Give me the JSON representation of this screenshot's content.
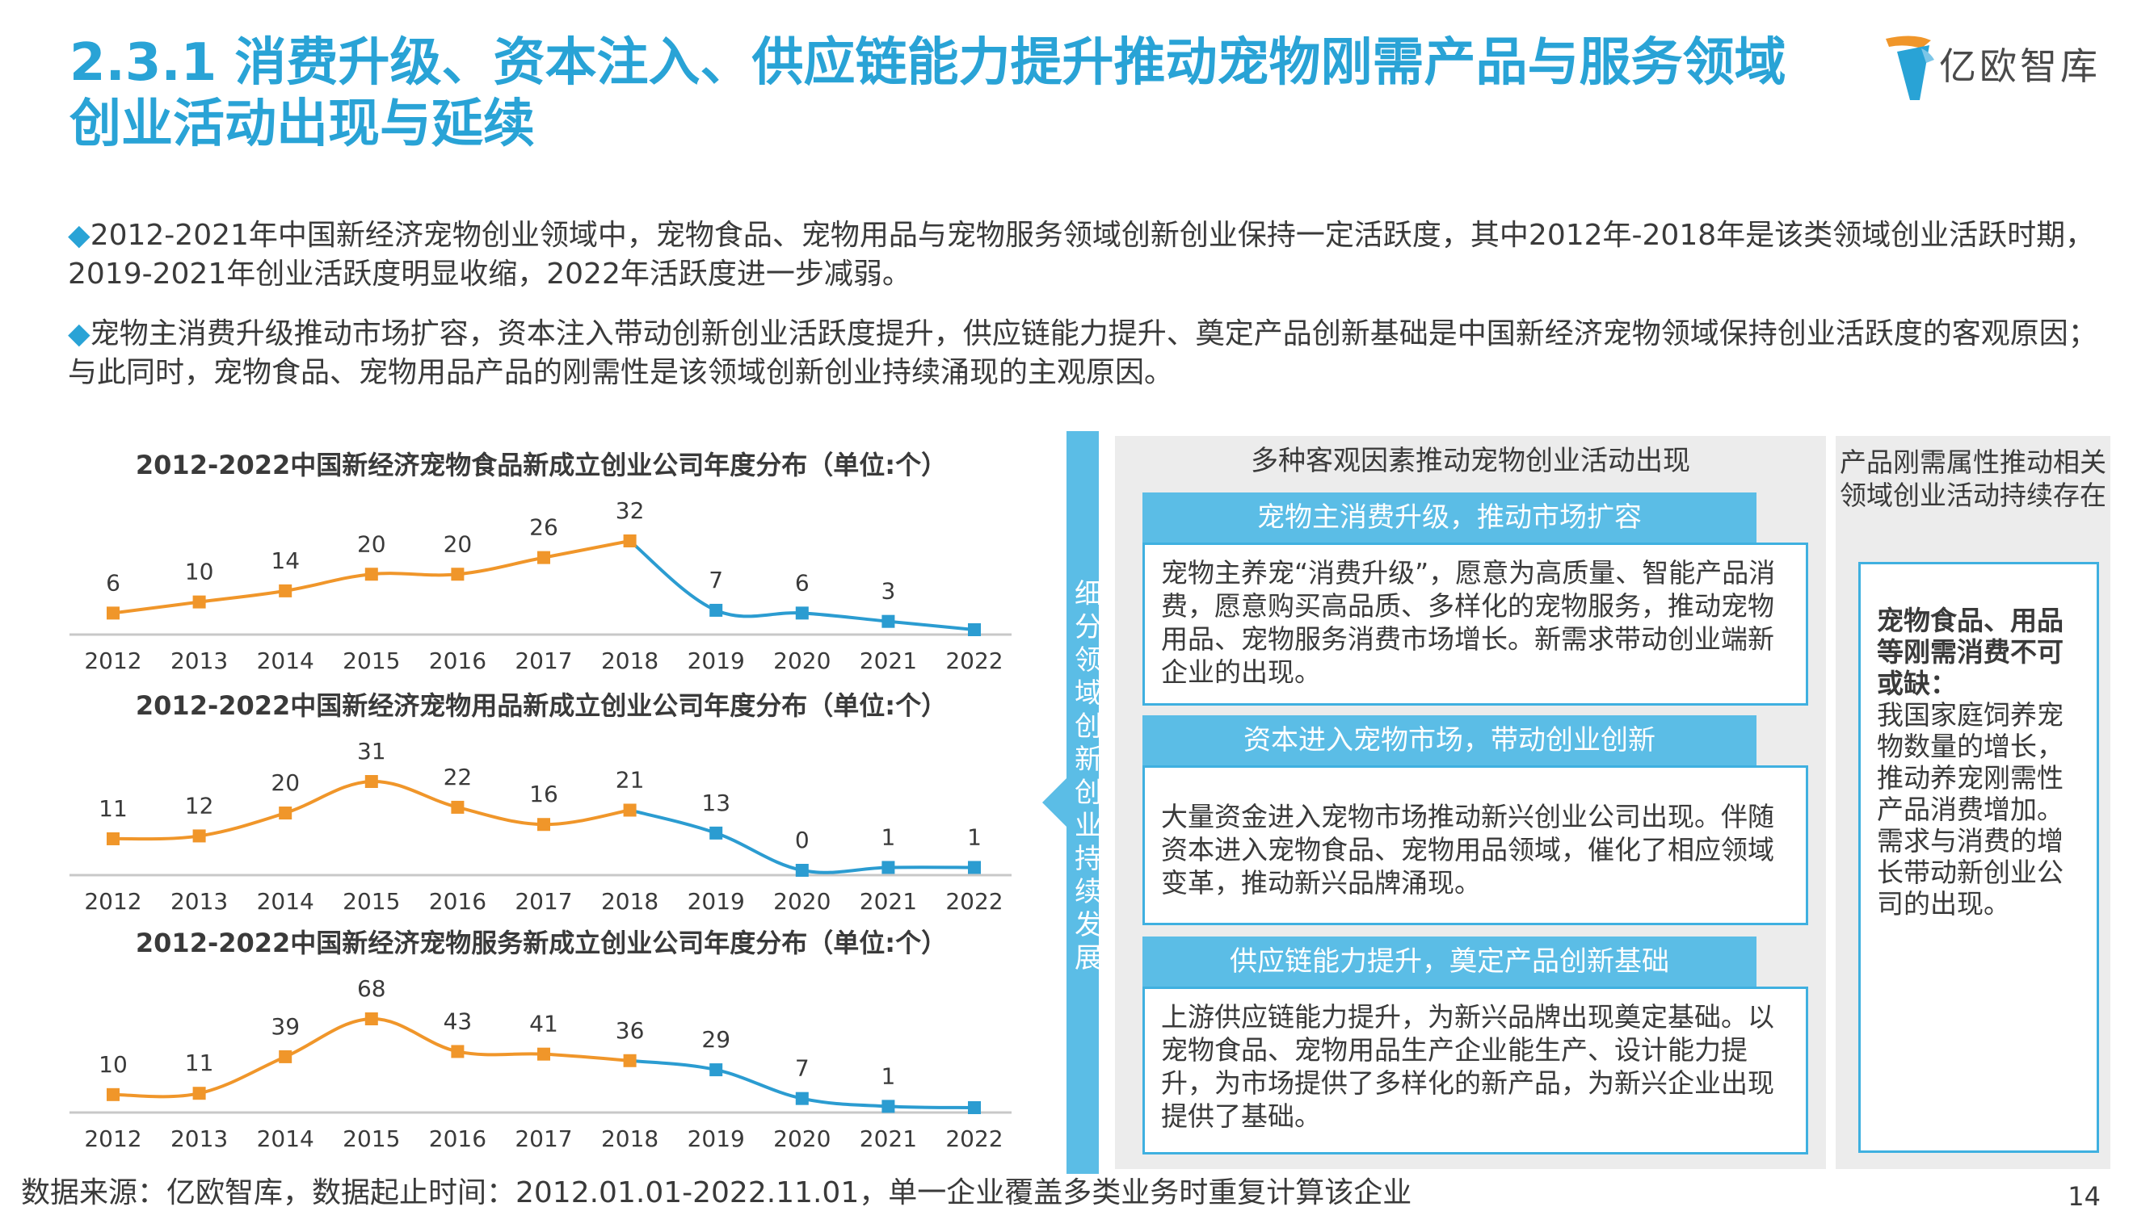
{
  "page": {
    "title": "2.3.1 消费升级、资本注入、供应链能力提升推动宠物刚需产品与服务领域创业活动出现与延续",
    "logo_text": "亿欧智库",
    "bullets": [
      "2012-2021年中国新经济宠物创业领域中，宠物食品、宠物用品与宠物服务领域创新创业保持一定活跃度，其中2012年-2018年是该类领域创业活跃时期，2019-2021年创业活跃度明显收缩，2022年活跃度进一步减弱。",
      "宠物主消费升级推动市场扩容，资本注入带动创新创业活跃度提升，供应链能力提升、奠定产品创新基础是中国新经济宠物领域保持创业活跃度的客观原因；与此同时，宠物食品、宠物用品产品的刚需性是该领域创新创业持续涌现的主观原因。"
    ],
    "bullet_marker": "◆",
    "source": "数据来源：亿欧智库，数据起止时间：2012.01.01-2022.11.01，单一企业覆盖多类业务时重复计算该企业",
    "page_number": "14"
  },
  "colors": {
    "title_blue": "#29a3d6",
    "orange": "#f0962a",
    "blue_line": "#2b9cd1",
    "tab_blue": "#5bbde6",
    "panel_gray": "#ececec"
  },
  "chart_data": [
    {
      "type": "line",
      "title": "2012-2022中国新经济宠物食品新成立创业公司年度分布（单位:个）",
      "x": [
        "2012",
        "2013",
        "2014",
        "2015",
        "2016",
        "2017",
        "2018",
        "2019",
        "2020",
        "2021",
        "2022"
      ],
      "values": [
        6,
        10,
        14,
        20,
        20,
        26,
        32,
        7,
        6,
        3,
        null
      ],
      "labels": [
        "6",
        "10",
        "14",
        "20",
        "20",
        "26",
        "32",
        "7",
        "6",
        "3",
        ""
      ],
      "orange_through": "2018",
      "ylim": [
        0,
        32
      ],
      "grid": false
    },
    {
      "type": "line",
      "title": "2012-2022中国新经济宠物用品新成立创业公司年度分布（单位:个）",
      "x": [
        "2012",
        "2013",
        "2014",
        "2015",
        "2016",
        "2017",
        "2018",
        "2019",
        "2020",
        "2021",
        "2022"
      ],
      "values": [
        11,
        12,
        20,
        31,
        22,
        16,
        21,
        13,
        0,
        1,
        1
      ],
      "labels": [
        "11",
        "12",
        "20",
        "31",
        "22",
        "16",
        "21",
        "13",
        "0",
        "1",
        "1"
      ],
      "orange_through": "2018",
      "ylim": [
        0,
        31
      ],
      "grid": false
    },
    {
      "type": "line",
      "title": "2012-2022中国新经济宠物服务新成立创业公司年度分布（单位:个）",
      "x": [
        "2012",
        "2013",
        "2014",
        "2015",
        "2016",
        "2017",
        "2018",
        "2019",
        "2020",
        "2021",
        "2022"
      ],
      "values": [
        10,
        11,
        39,
        68,
        43,
        41,
        36,
        29,
        7,
        1,
        null
      ],
      "labels": [
        "10",
        "11",
        "39",
        "68",
        "43",
        "41",
        "36",
        "29",
        "7",
        "1",
        ""
      ],
      "orange_through": "2018",
      "ylim": [
        0,
        68
      ],
      "grid": false
    }
  ],
  "diagram": {
    "band_text": "细分领域创新创业持续发展",
    "mid_heading": "多种客观因素推动宠物创业活动出现",
    "factors": [
      {
        "tab": "宠物主消费升级，推动市场扩容",
        "text": "宠物主养宠“消费升级”，愿意为高质量、智能产品消费，愿意购买高品质、多样化的宠物服务，推动宠物用品、宠物服务消费市场增长。新需求带动创业端新企业的出现。"
      },
      {
        "tab": "资本进入宠物市场，带动创业创新",
        "text": "大量资金进入宠物市场推动新兴创业公司出现。伴随资本进入宠物食品、宠物用品领域，催化了相应领域变革，推动新兴品牌涌现。"
      },
      {
        "tab": "供应链能力提升，奠定产品创新基础",
        "text": "上游供应链能力提升，为新兴品牌出现奠定基础。以宠物食品、宠物用品生产企业能生产、设计能力提升，为市场提供了多样化的新产品，为新兴企业出现提供了基础。"
      }
    ],
    "right_heading": "产品刚需属性推动相关领域创业活动持续存在",
    "right_bold": "宠物食品、用品等刚需消费不可或缺：",
    "right_text": "我国家庭饲养宠物数量的增长，推动养宠刚需性产品消费增加。需求与消费的增长带动新创业公司的出现。"
  }
}
